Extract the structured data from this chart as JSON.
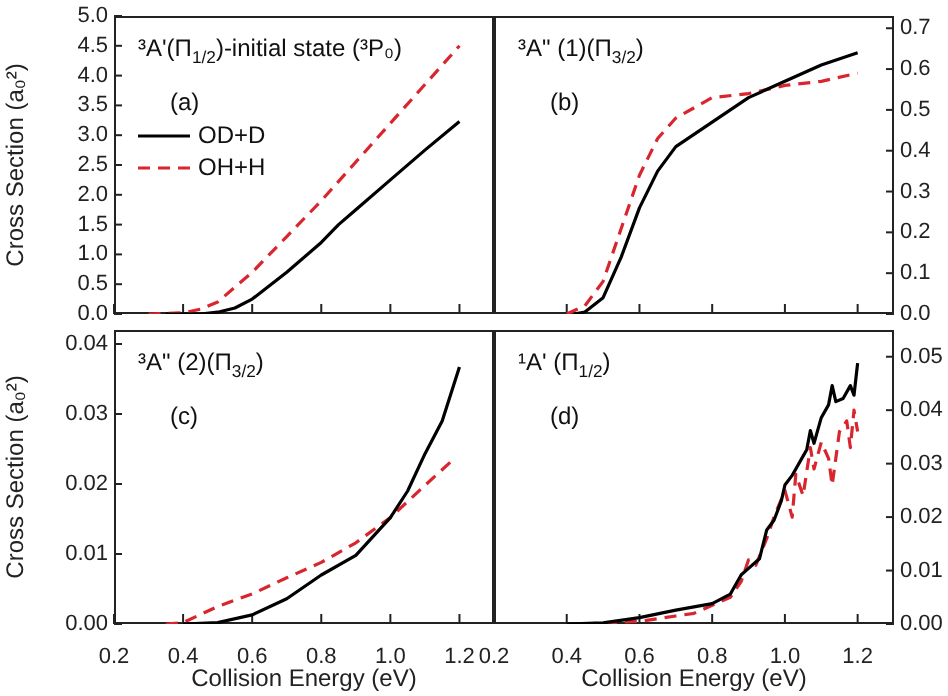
{
  "chart_data": [
    {
      "type": "line",
      "ylabel": "Cross Section (a₀²)",
      "annotations": [
        "³A'(Π$_{1/2}$)-initial state (³P₀)",
        "(a)"
      ],
      "legend": "top left",
      "tick_labels": "y",
      "xlim": [
        0.2,
        1.3
      ],
      "ylim": [
        0,
        5
      ],
      "xticks": [
        0.2,
        0.4,
        0.6,
        0.8,
        1,
        1.2
      ],
      "yticks": [
        {
          "value": 0,
          "label": "0.0"
        },
        0.5,
        {
          "value": 1,
          "label": "1.0"
        },
        1.5,
        {
          "value": 2,
          "label": "2.0"
        },
        2.5,
        {
          "value": 3,
          "label": "3.0"
        },
        3.5,
        {
          "value": 4,
          "label": "4.0"
        },
        4.5,
        {
          "value": 5,
          "label": "5.0"
        }
      ],
      "series": [
        {
          "name": "OD+D",
          "color": "#000000",
          "line_style": "solid",
          "x": [
            0.35,
            0.45,
            0.5,
            0.55,
            0.6,
            0.7,
            0.8,
            0.85,
            0.9,
            1.0,
            1.1,
            1.2
          ],
          "values": [
            0,
            0,
            0.03,
            0.1,
            0.25,
            0.7,
            1.2,
            1.5,
            1.75,
            2.25,
            2.75,
            3.23
          ]
        },
        {
          "name": "OH+H",
          "color": "#d9262e",
          "line_style": "dashed",
          "x": [
            0.3,
            0.4,
            0.45,
            0.5,
            0.6,
            0.7,
            0.8,
            0.9,
            1.0,
            1.1,
            1.2
          ],
          "values": [
            0,
            0.02,
            0.08,
            0.2,
            0.7,
            1.3,
            1.9,
            2.55,
            3.2,
            3.85,
            4.5
          ]
        }
      ]
    },
    {
      "type": "line",
      "annotations": [
        "³A\" (1)(Π$_{3/2}$)",
        "(b)"
      ],
      "tick_labels": "y",
      "xlim": [
        0.2,
        1.3
      ],
      "ylim": [
        0,
        0.73
      ],
      "xticks": [
        0.2,
        0.4,
        0.6,
        0.8,
        1,
        1.2
      ],
      "yticks": [
        {
          "value": 0,
          "label": "0.0"
        },
        0.1,
        0.2,
        0.3,
        0.4,
        0.5,
        0.6,
        0.7
      ],
      "series": [
        {
          "color": "#000000",
          "line_style": "solid",
          "x": [
            0.42,
            0.45,
            0.5,
            0.55,
            0.6,
            0.65,
            0.7,
            0.8,
            0.9,
            1.0,
            1.1,
            1.2
          ],
          "values": [
            0,
            0.005,
            0.04,
            0.14,
            0.26,
            0.35,
            0.41,
            0.47,
            0.53,
            0.57,
            0.61,
            0.64
          ]
        },
        {
          "color": "#d9262e",
          "line_style": "dashed",
          "x": [
            0.4,
            0.45,
            0.5,
            0.55,
            0.6,
            0.65,
            0.7,
            0.8,
            0.9,
            1.0,
            1.1,
            1.2
          ],
          "values": [
            0,
            0.02,
            0.08,
            0.21,
            0.34,
            0.43,
            0.48,
            0.53,
            0.54,
            0.56,
            0.57,
            0.59
          ]
        }
      ]
    },
    {
      "type": "line",
      "ylabel": "Cross Section (a₀²)",
      "xlabel": "Collision Energy (eV)",
      "annotations": [
        "³A\" (2)(Π$_{3/2}$)",
        "(c)"
      ],
      "xlim": [
        0.2,
        1.3
      ],
      "ylim": [
        0,
        0.042
      ],
      "xticks": [
        0.2,
        0.4,
        0.6,
        0.8,
        {
          "value": 1,
          "label": "1.0"
        },
        1.2
      ],
      "yticks": [
        {
          "value": 0,
          "label": "0.00"
        },
        {
          "value": 0.01,
          "label": "0.01"
        },
        {
          "value": 0.02,
          "label": "0.02"
        },
        {
          "value": 0.03,
          "label": "0.03"
        },
        {
          "value": 0.04,
          "label": "0.04"
        }
      ],
      "series": [
        {
          "color": "#000000",
          "line_style": "solid",
          "x": [
            0.4,
            0.5,
            0.6,
            0.7,
            0.8,
            0.9,
            1.0,
            1.05,
            1.1,
            1.15,
            1.2
          ],
          "values": [
            0,
            0.0002,
            0.0013,
            0.0036,
            0.007,
            0.0098,
            0.0152,
            0.019,
            0.0243,
            0.029,
            0.0367
          ]
        },
        {
          "color": "#d9262e",
          "line_style": "dashed",
          "x": [
            0.35,
            0.4,
            0.5,
            0.6,
            0.7,
            0.8,
            0.9,
            1.0,
            1.1,
            1.18
          ],
          "values": [
            0,
            0.0002,
            0.0025,
            0.0043,
            0.0066,
            0.0088,
            0.0116,
            0.0152,
            0.0198,
            0.0234
          ]
        }
      ]
    },
    {
      "type": "line",
      "xlabel": "Collision Energy (eV)",
      "annotations": [
        "¹A' (Π$_{1/2}$)",
        "(d)"
      ],
      "xlim": [
        0.2,
        1.3
      ],
      "ylim": [
        0,
        0.055
      ],
      "xticks": [
        0.2,
        0.4,
        0.6,
        0.8,
        {
          "value": 1,
          "label": "1.0"
        },
        1.2
      ],
      "yticks": [
        {
          "value": 0,
          "label": "0.00"
        },
        {
          "value": 0.01,
          "label": "0.01"
        },
        {
          "value": 0.02,
          "label": "0.02"
        },
        {
          "value": 0.03,
          "label": "0.03"
        },
        {
          "value": 0.04,
          "label": "0.04"
        },
        {
          "value": 0.05,
          "label": "0.05"
        }
      ],
      "series": [
        {
          "color": "#000000",
          "line_style": "solid",
          "x": [
            0.4,
            0.5,
            0.6,
            0.7,
            0.8,
            0.85,
            0.88,
            0.9,
            0.93,
            0.95,
            0.97,
            0.99,
            1.0,
            1.02,
            1.03,
            1.05,
            1.06,
            1.07,
            1.08,
            1.1,
            1.12,
            1.13,
            1.14,
            1.16,
            1.18,
            1.19,
            1.2
          ],
          "values": [
            0,
            0.0002,
            0.0012,
            0.0026,
            0.0038,
            0.0056,
            0.0092,
            0.0104,
            0.0122,
            0.0176,
            0.0194,
            0.023,
            0.026,
            0.0278,
            0.029,
            0.0314,
            0.0326,
            0.0362,
            0.0338,
            0.0386,
            0.041,
            0.0446,
            0.0416,
            0.0422,
            0.0446,
            0.0428,
            0.0488
          ]
        },
        {
          "color": "#d9262e",
          "line_style": "dashed",
          "x": [
            0.45,
            0.5,
            0.6,
            0.7,
            0.75,
            0.8,
            0.85,
            0.88,
            0.9,
            0.92,
            0.95,
            0.97,
            1.0,
            1.02,
            1.03,
            1.05,
            1.07,
            1.08,
            1.1,
            1.12,
            1.13,
            1.15,
            1.17,
            1.18,
            1.19,
            1.2
          ],
          "values": [
            0,
            0.0002,
            0.0005,
            0.0015,
            0.002,
            0.0035,
            0.005,
            0.008,
            0.012,
            0.011,
            0.016,
            0.02,
            0.025,
            0.02,
            0.028,
            0.024,
            0.033,
            0.029,
            0.034,
            0.031,
            0.026,
            0.036,
            0.038,
            0.033,
            0.04,
            0.036
          ]
        }
      ]
    }
  ]
}
